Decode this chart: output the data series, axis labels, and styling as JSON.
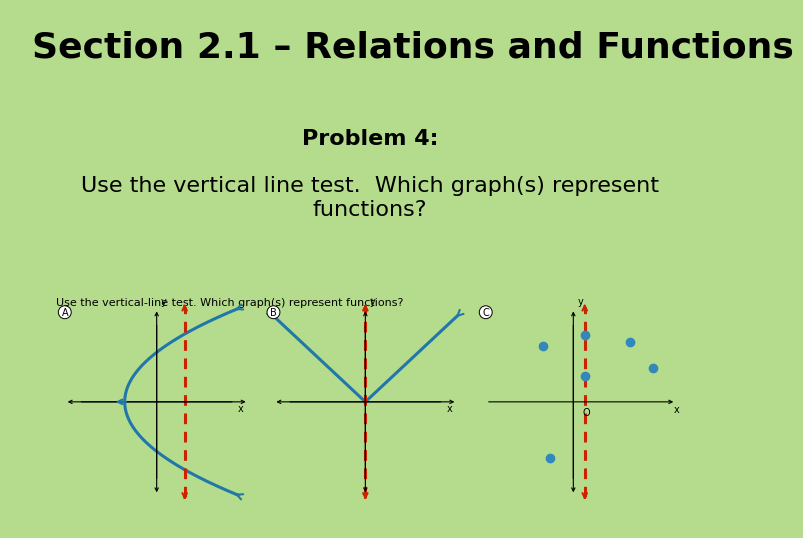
{
  "title": "Section 2.1 – Relations and Functions",
  "title_fontsize": 26,
  "title_color": "#000000",
  "problem_label": "Problem 4:",
  "problem_fontsize": 16,
  "body_text": "Use the vertical line test.  Which graph(s) represent\nfunctions?",
  "body_fontsize": 16,
  "background_color": "#b5dc8c",
  "inner_text": "Use the vertical-line test. Which graph(s) represent functions?",
  "inner_text_fontsize": 8,
  "dashed_line_color": "#cc2200",
  "curve_color": "#2277aa",
  "dot_color": "#3388bb",
  "axis_color": "#000000"
}
